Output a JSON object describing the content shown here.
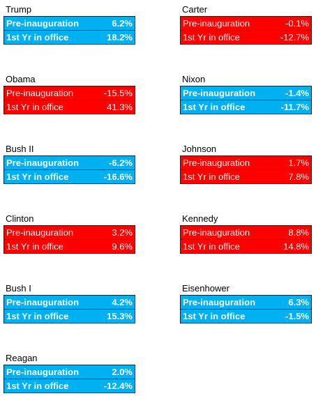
{
  "columns": [
    [
      {
        "name": "Trump",
        "color": "#00b0f0",
        "bold": true,
        "rows": [
          [
            "Pre-inauguration",
            "6.2%"
          ],
          [
            "1st Yr in office",
            "18.2%"
          ]
        ]
      },
      {
        "name": "Obama",
        "color": "#ff0000",
        "bold": false,
        "rows": [
          [
            "Pre-inauguration",
            "-15.5%"
          ],
          [
            "1st Yr in office",
            "41.3%"
          ]
        ]
      },
      {
        "name": "Bush II",
        "color": "#00b0f0",
        "bold": true,
        "rows": [
          [
            "Pre-inauguration",
            "-6.2%"
          ],
          [
            "1st Yr in office",
            "-16.6%"
          ]
        ]
      },
      {
        "name": "Clinton",
        "color": "#ff0000",
        "bold": false,
        "rows": [
          [
            "Pre-inauguration",
            "3.2%"
          ],
          [
            "1st Yr in office",
            "9.6%"
          ]
        ]
      },
      {
        "name": "Bush I",
        "color": "#00b0f0",
        "bold": true,
        "rows": [
          [
            "Pre-inauguration",
            "4.2%"
          ],
          [
            "1st Yr in office",
            "15.3%"
          ]
        ]
      },
      {
        "name": "Reagan",
        "color": "#00b0f0",
        "bold": true,
        "rows": [
          [
            "Pre-inauguration",
            "2.0%"
          ],
          [
            "1st Yr in office",
            "-12.4%"
          ]
        ]
      }
    ],
    [
      {
        "name": "Carter",
        "color": "#ff0000",
        "bold": false,
        "rows": [
          [
            "Pre-inauguration",
            "-0.1%"
          ],
          [
            "1st Yr in office",
            "-12.7%"
          ]
        ]
      },
      {
        "name": "Nixon",
        "color": "#00b0f0",
        "bold": true,
        "rows": [
          [
            "Pre-inauguration",
            "-1.4%"
          ],
          [
            "1st Yr in office",
            "-11.7%"
          ]
        ]
      },
      {
        "name": "Johnson",
        "color": "#ff0000",
        "bold": false,
        "rows": [
          [
            "Pre-inauguration",
            "1.7%"
          ],
          [
            "1st Yr in office",
            "7.8%"
          ]
        ]
      },
      {
        "name": "Kennedy",
        "color": "#ff0000",
        "bold": false,
        "rows": [
          [
            "Pre-inauguration",
            "8.8%"
          ],
          [
            "1st Yr in office",
            "14.8%"
          ]
        ]
      },
      {
        "name": "Eisenhower",
        "color": "#00b0f0",
        "bold": true,
        "rows": [
          [
            "Pre-inauguration",
            "6.3%"
          ],
          [
            "1st Yr in office",
            "-1.5%"
          ]
        ]
      }
    ]
  ]
}
